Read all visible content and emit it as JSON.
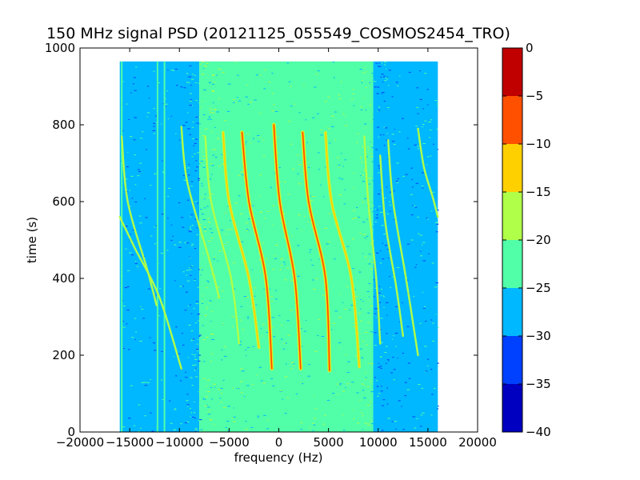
{
  "chart_data": {
    "type": "heatmap",
    "title": "150 MHz signal PSD (20121125_055549_COSMOS2454_TRO)",
    "xlabel": "frequency (Hz)",
    "ylabel": "time (s)",
    "xlim": [
      -20000,
      20000
    ],
    "ylim": [
      0,
      1000
    ],
    "x_ticks": [
      -20000,
      -15000,
      -10000,
      -5000,
      0,
      5000,
      10000,
      15000,
      20000
    ],
    "x_tick_labels": [
      "−20000",
      "−15000",
      "−10000",
      "−5000",
      "0",
      "5000",
      "10000",
      "15000",
      "20000"
    ],
    "y_ticks": [
      0,
      200,
      400,
      600,
      800,
      1000
    ],
    "y_tick_labels": [
      "0",
      "200",
      "400",
      "600",
      "800",
      "1000"
    ],
    "data_extent": {
      "x": [
        -16000,
        16000
      ],
      "y": [
        0,
        965
      ]
    },
    "noise_floor": [
      {
        "x_range": [
          -16000,
          -8000
        ],
        "level_db": -27.5
      },
      {
        "x_range": [
          -8000,
          9500
        ],
        "level_db": -22.5
      },
      {
        "x_range": [
          9500,
          16000
        ],
        "level_db": -27.5
      }
    ],
    "traces": [
      {
        "peak_db": -7.5,
        "points": [
          [
            -500,
            800
          ],
          [
            100,
            600
          ],
          [
            1600,
            400
          ],
          [
            2200,
            165
          ]
        ]
      },
      {
        "peak_db": -7.5,
        "points": [
          [
            2400,
            780
          ],
          [
            3000,
            600
          ],
          [
            4700,
            400
          ],
          [
            5100,
            160
          ]
        ]
      },
      {
        "peak_db": -10,
        "points": [
          [
            -3700,
            780
          ],
          [
            -3000,
            600
          ],
          [
            -1300,
            400
          ],
          [
            -700,
            165
          ]
        ]
      },
      {
        "peak_db": -12.5,
        "points": [
          [
            4700,
            780
          ],
          [
            5300,
            600
          ],
          [
            7300,
            400
          ],
          [
            8100,
            170
          ]
        ]
      },
      {
        "peak_db": -12.5,
        "points": [
          [
            -5600,
            780
          ],
          [
            -5000,
            600
          ],
          [
            -3000,
            400
          ],
          [
            -2000,
            220
          ]
        ]
      },
      {
        "peak_db": -17.5,
        "points": [
          [
            8600,
            770
          ],
          [
            9000,
            600
          ],
          [
            9800,
            400
          ],
          [
            10200,
            230
          ]
        ]
      },
      {
        "peak_db": -17.5,
        "points": [
          [
            -7400,
            770
          ],
          [
            -6800,
            600
          ],
          [
            -4800,
            400
          ],
          [
            -4000,
            230
          ]
        ]
      },
      {
        "peak_db": -17.5,
        "points": [
          [
            -9800,
            795
          ],
          [
            -9200,
            650
          ],
          [
            -7000,
            450
          ],
          [
            -6000,
            350
          ]
        ]
      },
      {
        "peak_db": -17.5,
        "points": [
          [
            -15800,
            770
          ],
          [
            -15200,
            600
          ],
          [
            -13200,
            420
          ],
          [
            -12300,
            330
          ]
        ]
      },
      {
        "peak_db": -17.5,
        "points": [
          [
            -16000,
            560
          ],
          [
            -14500,
            480
          ],
          [
            -12000,
            350
          ],
          [
            -9800,
            165
          ]
        ]
      },
      {
        "peak_db": -17.5,
        "points": [
          [
            14000,
            790
          ],
          [
            14600,
            690
          ],
          [
            15500,
            610
          ],
          [
            16000,
            560
          ]
        ]
      },
      {
        "peak_db": -20,
        "points": [
          [
            11000,
            760
          ],
          [
            11500,
            600
          ],
          [
            12800,
            400
          ],
          [
            14000,
            200
          ]
        ]
      },
      {
        "peak_db": -20,
        "points": [
          [
            10200,
            720
          ],
          [
            10700,
            550
          ],
          [
            11800,
            380
          ],
          [
            12500,
            250
          ]
        ]
      }
    ],
    "vertical_lines": [
      {
        "x": -12200,
        "level_db": -22.5
      },
      {
        "x": -11500,
        "level_db": -22.5
      },
      {
        "x": -15800,
        "level_db": -22.5
      }
    ],
    "colorbar": {
      "range": [
        -40,
        0
      ],
      "ticks": [
        0,
        -5,
        -10,
        -15,
        -20,
        -25,
        -30,
        -35,
        -40
      ],
      "tick_labels": [
        "0",
        "−5",
        "−10",
        "−15",
        "−20",
        "−25",
        "−30",
        "−35",
        "−40"
      ],
      "levels": [
        {
          "from": -40,
          "to": -35,
          "color": "#0000c0"
        },
        {
          "from": -35,
          "to": -30,
          "color": "#0040ff"
        },
        {
          "from": -30,
          "to": -25,
          "color": "#00b8ff"
        },
        {
          "from": -25,
          "to": -20,
          "color": "#50ffa8"
        },
        {
          "from": -20,
          "to": -15,
          "color": "#b0ff48"
        },
        {
          "from": -15,
          "to": -10,
          "color": "#ffd000"
        },
        {
          "from": -10,
          "to": -5,
          "color": "#ff5000"
        },
        {
          "from": -5,
          "to": 0,
          "color": "#c00000"
        }
      ]
    }
  }
}
